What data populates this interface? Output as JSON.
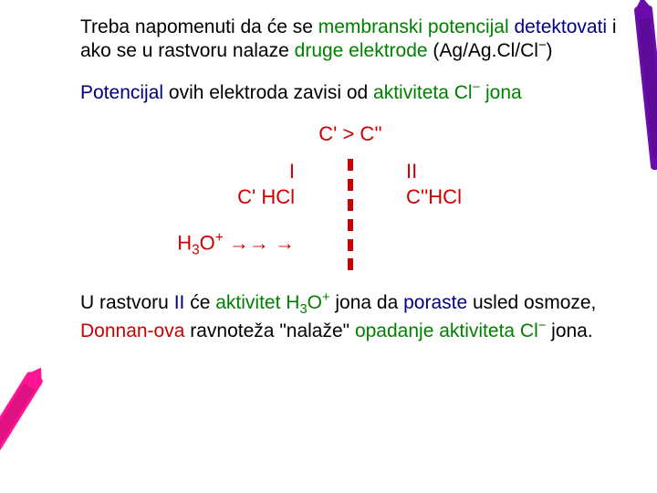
{
  "colors": {
    "green": "#008000",
    "navy": "#000080",
    "red": "#cc0000",
    "background": "#ffffff",
    "crayon_left": "#ff1493",
    "crayon_right": "#6a0dad"
  },
  "para1": {
    "pre": "Treba napomenuti da će se ",
    "h1": "membranski potencijal",
    "mid1": " ",
    "h2": "detektovati",
    "mid2": " i ako se u rastvoru nalaze ",
    "h3": "druge elektrode",
    "post": " (Ag/Ag.Cl/Cl",
    "sup": "−",
    "close": ")"
  },
  "para2": {
    "p1": "Potencijal",
    "p2": " ovih elektroda zavisi od ",
    "p3": "aktiviteta Cl",
    "p3sup": "−",
    "p4": " jona"
  },
  "inequality": "C' > C''",
  "left": {
    "roman": "I",
    "label": "C' HCl",
    "reaction_a": "H",
    "reaction_sub": "3",
    "reaction_b": "O",
    "reaction_sup": "+",
    "arrows": " →→ →"
  },
  "right": {
    "roman": "II",
    "label": "C''HCl"
  },
  "membrane_dash_count": 6,
  "para3": {
    "t1": "U rastvoru ",
    "t2": "II",
    "t3": " će ",
    "t4": "aktivitet H",
    "t4sub": "3",
    "t4b": "O",
    "t4sup": "+",
    "t5": " jona da ",
    "t6": "poraste",
    "t7": " usled osmoze, ",
    "t8": "Donnan-ova",
    "t9": "  ravnoteža \"nalaže\" ",
    "t10": "opadanje aktiviteta Cl",
    "t10sup": "−",
    "t11": " jona."
  }
}
